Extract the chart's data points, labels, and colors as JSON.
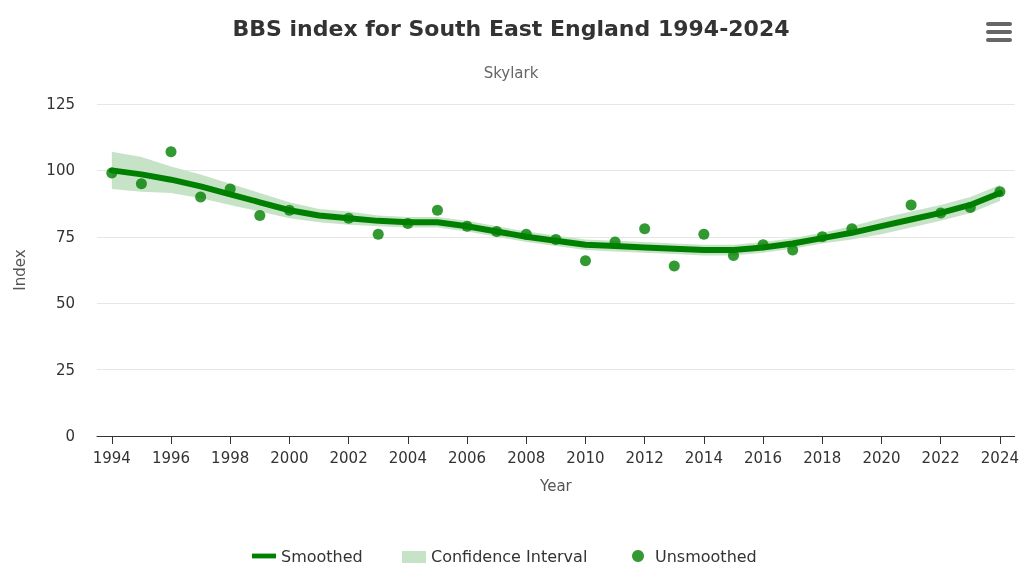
{
  "chart_data": {
    "type": "line",
    "title": "BBS index for South East England 1994-2024",
    "subtitle": "Skylark",
    "xlabel": "Year",
    "ylabel": "Index",
    "annotations": [
      "Confidence Interval"
    ],
    "x": [
      1994,
      1995,
      1996,
      1997,
      1998,
      1999,
      2000,
      2001,
      2002,
      2003,
      2004,
      2005,
      2006,
      2007,
      2008,
      2009,
      2010,
      2011,
      2012,
      2013,
      2014,
      2015,
      2016,
      2017,
      2018,
      2019,
      2020,
      2021,
      2022,
      2023,
      2024
    ],
    "series": [
      {
        "name": "Smoothed",
        "type": "line",
        "color": "#008000",
        "values": [
          100,
          98.5,
          96.5,
          94,
          91,
          88,
          85,
          83,
          82,
          81,
          80.5,
          80.5,
          79,
          77,
          75,
          73.5,
          72,
          71.5,
          71,
          70.5,
          70,
          70,
          71,
          72.5,
          74.5,
          76.5,
          79,
          81.5,
          84,
          87,
          91.5
        ],
        "lower": [
          93,
          92,
          91.5,
          89.5,
          87,
          84.5,
          82,
          80.5,
          79.5,
          79,
          78.5,
          78.5,
          77,
          75,
          73,
          71.5,
          70,
          69.5,
          69,
          68.5,
          68,
          68,
          69,
          70.5,
          72.5,
          74,
          76,
          78.5,
          81,
          84,
          88.5
        ],
        "upper": [
          107,
          105,
          101.5,
          98.5,
          95,
          91.5,
          88,
          85.5,
          84.5,
          83,
          82.5,
          82.5,
          81,
          79,
          77,
          75.5,
          74,
          73.5,
          73,
          72.5,
          72,
          72,
          73,
          74.5,
          76.5,
          79,
          82,
          84.5,
          87,
          90,
          94.5
        ]
      },
      {
        "name": "Unsmoothed",
        "type": "scatter",
        "color": "#008000",
        "marker": "circle",
        "values": [
          99,
          95,
          107,
          90,
          93,
          83,
          85,
          null,
          82,
          76,
          80,
          85,
          79,
          77,
          76,
          74,
          66,
          73,
          78,
          64,
          76,
          68,
          72,
          70,
          75,
          78,
          null,
          87,
          84,
          86,
          92
        ]
      }
    ],
    "xlim": [
      1993.5,
      2024.5
    ],
    "xticks": [
      1994,
      1996,
      1998,
      2000,
      2002,
      2004,
      2006,
      2008,
      2010,
      2012,
      2014,
      2016,
      2018,
      2020,
      2022,
      2024
    ],
    "ylim": [
      0,
      125
    ],
    "yticks": [
      0,
      25,
      50,
      75,
      100,
      125
    ],
    "grid": "y",
    "legend": "bottom",
    "line_style": "solid"
  }
}
